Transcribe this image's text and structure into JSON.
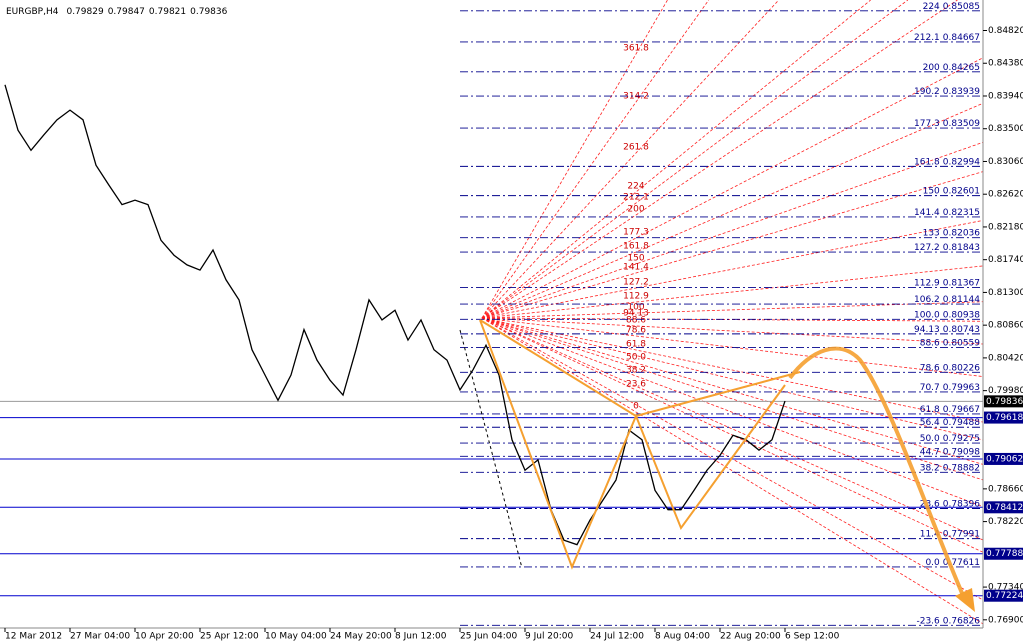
{
  "chart_data": {
    "type": "line",
    "title": "EURGBP,H4",
    "quote": [
      0.79829,
      0.79847,
      0.79821,
      0.79836
    ],
    "color": "#000000",
    "categories": [
      "12 Mar 2012",
      null,
      null,
      null,
      null,
      "27 Mar 04:00",
      null,
      null,
      null,
      null,
      "10 Apr 20:00",
      null,
      null,
      null,
      null,
      "25 Apr 12:00",
      null,
      null,
      null,
      null,
      "10 May 04:00",
      null,
      null,
      null,
      null,
      "24 May 20:00",
      null,
      null,
      null,
      null,
      "8 Jun 12:00",
      null,
      null,
      null,
      null,
      "25 Jun 04:00",
      null,
      null,
      null,
      null,
      "9 Jul 20:00",
      null,
      null,
      null,
      null,
      "24 Jul 12:00",
      null,
      null,
      null,
      null,
      "8 Aug 04:00",
      null,
      null,
      null,
      null,
      "22 Aug 20:00",
      null,
      null,
      null,
      null,
      "6 Sep 12:00"
    ],
    "values": [
      0.8409,
      0.8348,
      0.8321,
      0.8342,
      0.8362,
      0.8375,
      0.8362,
      0.8301,
      0.8274,
      0.8248,
      0.8254,
      0.8248,
      0.82,
      0.818,
      0.8167,
      0.816,
      0.8187,
      0.8147,
      0.812,
      0.8053,
      0.8019,
      0.7985,
      0.8019,
      0.808,
      0.8039,
      0.8012,
      0.7992,
      0.8053,
      0.812,
      0.8093,
      0.8106,
      0.8066,
      0.8093,
      0.8053,
      0.8039,
      0.7999,
      0.8026,
      0.8059,
      0.8019,
      0.7932,
      0.7891,
      0.7905,
      0.7838,
      0.7797,
      0.7791,
      0.7824,
      0.7851,
      0.7878,
      0.7945,
      0.7932,
      0.7864,
      0.7838,
      0.7838,
      0.7864,
      0.7891,
      0.7911,
      0.7938,
      0.7932,
      0.7918,
      0.7932,
      0.7984
    ],
    "ylim": [
      0.7679,
      0.8523
    ],
    "yticks": [
      {
        "value": 0.8482,
        "label": "0.84820"
      },
      {
        "value": 0.8438,
        "label": "0.84380"
      },
      {
        "value": 0.8394,
        "label": "0.83940"
      },
      {
        "value": 0.835,
        "label": "0.83500"
      },
      {
        "value": 0.8306,
        "label": "0.83060"
      },
      {
        "value": 0.8262,
        "label": "0.82620"
      },
      {
        "value": 0.8218,
        "label": "0.82180"
      },
      {
        "value": 0.8174,
        "label": "0.81740"
      },
      {
        "value": 0.813,
        "label": "0.81300"
      },
      {
        "value": 0.8086,
        "label": "0.80860"
      },
      {
        "value": 0.8042,
        "label": "0.80420"
      },
      {
        "value": 0.7998,
        "label": "0.79980"
      },
      {
        "value": 0.7866,
        "label": "0.78660"
      },
      {
        "value": 0.7822,
        "label": "0.78220"
      },
      {
        "value": 0.7734,
        "label": "0.77340"
      },
      {
        "value": 0.769,
        "label": "0.76900"
      }
    ],
    "current_price": 0.79836,
    "levels": [
      0.79618,
      0.79062,
      0.78412,
      0.77788,
      0.77224
    ],
    "fib_levels": [
      {
        "ratio": "224",
        "price": 0.85085
      },
      {
        "ratio": "212.1",
        "price": 0.84667
      },
      {
        "ratio": "200",
        "price": 0.84265
      },
      {
        "ratio": "190.2",
        "price": 0.83939
      },
      {
        "ratio": "177.3",
        "price": 0.83509
      },
      {
        "ratio": "161.8",
        "price": 0.82994
      },
      {
        "ratio": "150",
        "price": 0.82601
      },
      {
        "ratio": "141.4",
        "price": 0.82315
      },
      {
        "ratio": "133",
        "price": 0.82036
      },
      {
        "ratio": "127.2",
        "price": 0.81843
      },
      {
        "ratio": "112.9",
        "price": 0.81367
      },
      {
        "ratio": "106.2",
        "price": 0.81144
      },
      {
        "ratio": "100.0",
        "price": 0.80938
      },
      {
        "ratio": "94.13",
        "price": 0.80743
      },
      {
        "ratio": "88.6",
        "price": 0.80559
      },
      {
        "ratio": "78.6",
        "price": 0.80226
      },
      {
        "ratio": "70.7",
        "price": 0.79963
      },
      {
        "ratio": "61.8",
        "price": 0.79667
      },
      {
        "ratio": "56.4",
        "price": 0.79488
      },
      {
        "ratio": "50.0",
        "price": 0.79275
      },
      {
        "ratio": "44.7",
        "price": 0.79098
      },
      {
        "ratio": "38.2",
        "price": 0.78882
      },
      {
        "ratio": "23.6",
        "price": 0.78396
      },
      {
        "ratio": "11.4",
        "price": 0.77991
      },
      {
        "ratio": "0.0",
        "price": 0.77611
      },
      {
        "ratio": "-23.6",
        "price": 0.76826
      }
    ],
    "fan_labels": [
      "361.8",
      "314.2",
      "261.8",
      "224",
      "212.1",
      "200",
      "177.3",
      "161.8",
      "150",
      "141.4",
      "127.2",
      "112.9",
      "100",
      "94.13",
      "88.6",
      "78.6",
      "61.8",
      "50.0",
      "38.2",
      "23.6",
      "0"
    ]
  }
}
